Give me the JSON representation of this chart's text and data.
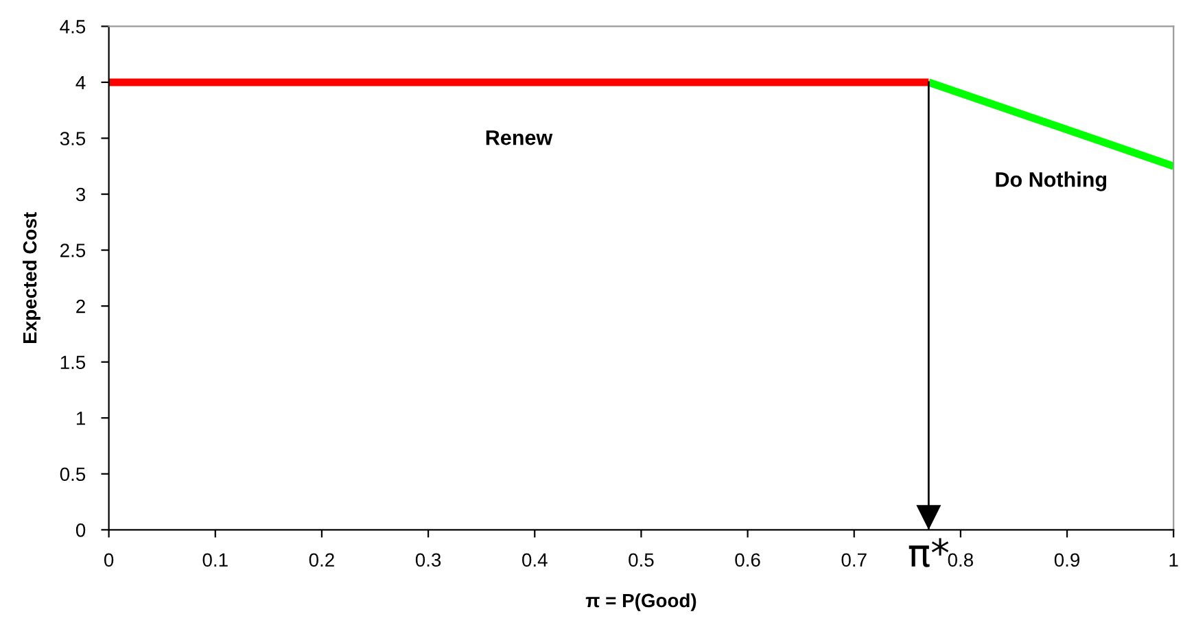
{
  "chart_data": {
    "type": "line",
    "xlabel": "π = P(Good)",
    "ylabel": "Expected Cost",
    "series": [
      {
        "name": "Renew",
        "color": "#ff0000",
        "x": [
          0,
          0.77
        ],
        "values": [
          4,
          4
        ]
      },
      {
        "name": "Do Nothing",
        "color": "#00ff00",
        "x": [
          0.77,
          1
        ],
        "values": [
          4,
          3.25
        ]
      }
    ],
    "xlim": [
      0,
      1
    ],
    "xticks": [
      0,
      0.1,
      0.2,
      0.3,
      0.4,
      0.5,
      0.6,
      0.7,
      0.8,
      0.9,
      1
    ],
    "ylim": [
      0,
      4.5
    ],
    "yticks": [
      0,
      0.5,
      1,
      1.5,
      2,
      2.5,
      3,
      3.5,
      4,
      4.5
    ],
    "ref_lines": [
      {
        "axis": "x",
        "value": 0.77,
        "label": "π*",
        "color": "#000000"
      }
    ],
    "grid": false,
    "legend": false,
    "marker": "none",
    "line_style": "solid"
  }
}
